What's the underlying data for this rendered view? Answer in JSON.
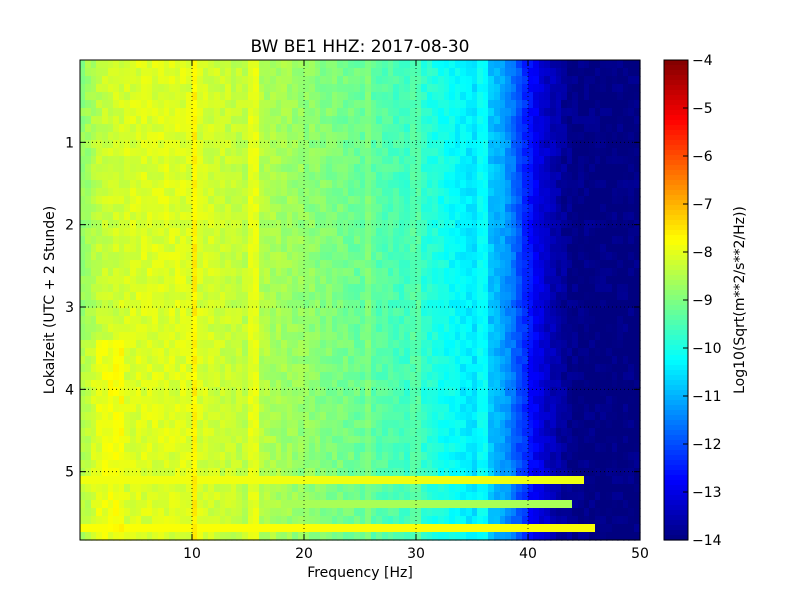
{
  "chart_data": {
    "type": "heatmap",
    "title": "BW BE1 HHZ: 2017-08-30",
    "xlabel": "Frequency [Hz]",
    "ylabel": "Lokalzeit (UTC + 2 Stunde)",
    "xlim": [
      0,
      50
    ],
    "ylim": [
      0,
      5.83
    ],
    "y_inverted": true,
    "grid": true,
    "x_ticks": [
      10,
      20,
      30,
      40,
      50
    ],
    "x_tick_labels": [
      "10",
      "20",
      "30",
      "40",
      "50"
    ],
    "y_ticks": [
      1,
      2,
      3,
      4,
      5
    ],
    "y_tick_labels": [
      "1",
      "2",
      "3",
      "4",
      "5"
    ],
    "colormap": "jet",
    "colorbar": {
      "label": "Log10(Sqrt(m**2/s**2/Hz))",
      "min": -14,
      "max": -4,
      "ticks": [
        -4,
        -5,
        -6,
        -7,
        -8,
        -9,
        -10,
        -11,
        -12,
        -13,
        -14
      ],
      "tick_labels": [
        "−4",
        "−5",
        "−6",
        "−7",
        "−8",
        "−9",
        "−10",
        "−11",
        "−12",
        "−13",
        "−14"
      ]
    },
    "profile": {
      "frequency_hz": [
        0,
        2,
        5,
        10,
        15,
        20,
        25,
        28,
        30,
        32,
        34,
        36,
        38,
        39,
        40,
        41,
        42,
        43,
        44,
        46,
        50
      ],
      "log_amplitude": [
        -8.9,
        -8.3,
        -8.1,
        -8.1,
        -8.4,
        -8.8,
        -9.2,
        -9.5,
        -9.7,
        -10.0,
        -10.3,
        -10.6,
        -11.2,
        -11.8,
        -12.5,
        -13.0,
        -13.4,
        -13.7,
        -13.95,
        -14.0,
        -14.0
      ]
    },
    "spectral_lines_hz": [
      [
        10.2,
        -7.6
      ],
      [
        15.5,
        -8.0
      ],
      [
        30.0,
        -9.4
      ],
      [
        36.0,
        -10.2
      ],
      [
        25.8,
        -9.0
      ]
    ],
    "time_bands": [
      {
        "time": 5.07,
        "value": -7.9,
        "max_freq": 45
      },
      {
        "time": 5.37,
        "value": -8.6,
        "max_freq": 44
      },
      {
        "time": 5.7,
        "value": -7.8,
        "max_freq": 46
      }
    ]
  }
}
